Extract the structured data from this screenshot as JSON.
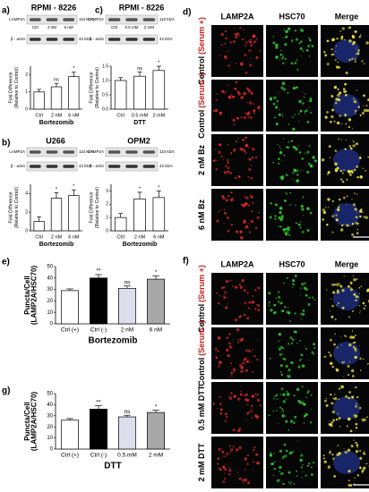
{
  "chart_data": [
    {
      "type": "bar",
      "panel": "a)",
      "title": "RPMI - 8226",
      "categories": [
        "Ctrl",
        "2 nM",
        "6 nM"
      ],
      "values": [
        1.0,
        1.3,
        1.9
      ],
      "errors": [
        0.15,
        0.2,
        0.25
      ],
      "significance": [
        null,
        "ns",
        "*"
      ],
      "colors": [
        "#ffffff",
        "#ffffff",
        "#ffffff"
      ],
      "ylim": [
        0,
        2.5
      ],
      "yticks": [
        0,
        1,
        2
      ],
      "ylabel": [
        "Fold Difference",
        "(Relative to Control)"
      ],
      "xlabel": "Bortezomib",
      "blot": {
        "rows": [
          "LAMP2A",
          "β - actin"
        ],
        "sizes": [
          "110 kDA",
          "42 kDA"
        ],
        "lane_labels": true
      }
    },
    {
      "type": "bar",
      "panel": "c)",
      "title": "RPMI - 8226",
      "categories": [
        "Ctrl",
        "0.5 mM",
        "2 mM"
      ],
      "values": [
        1.0,
        1.15,
        1.35
      ],
      "errors": [
        0.1,
        0.15,
        0.15
      ],
      "significance": [
        null,
        "ns",
        "*"
      ],
      "colors": [
        "#ffffff",
        "#ffffff",
        "#ffffff"
      ],
      "ylim": [
        0,
        1.5
      ],
      "yticks": [
        {
          "value": 0,
          "label": "0.0"
        },
        {
          "value": 0.5,
          "label": "0.5"
        },
        {
          "value": 1,
          "label": "1.0"
        },
        {
          "value": 1.5,
          "label": "1.5"
        }
      ],
      "ylabel": [
        "Fold Difference",
        "(Relative to Control)"
      ],
      "xlabel": "DTT",
      "blot": {
        "rows": [
          "LAMP2A",
          "β - actin"
        ],
        "sizes": [
          "110 kDA",
          "42 kDA"
        ],
        "lane_labels": true
      }
    },
    {
      "type": "bar",
      "panel": "b)",
      "title": "U266",
      "categories": [
        "Ctrl",
        "2 nM",
        "6 nM"
      ],
      "values": [
        1.0,
        3.5,
        3.8
      ],
      "errors": [
        0.5,
        0.6,
        0.6
      ],
      "significance": [
        null,
        "*",
        "*"
      ],
      "colors": [
        "#ffffff",
        "#ffffff",
        "#ffffff"
      ],
      "ylim": [
        0,
        5
      ],
      "yticks": [
        0,
        2,
        4
      ],
      "ylabel": [
        "Fold Difference",
        "(Relative to Control)"
      ],
      "xlabel": "Bortezomib",
      "blot": {
        "rows": [
          "LAMP2A",
          "β - actin"
        ],
        "sizes": [
          "110 kDA",
          "42 kDA"
        ],
        "lane_labels": false
      }
    },
    {
      "type": "bar",
      "title": "OPM2",
      "categories": [
        "Ctrl",
        "2 nM",
        "6 nM"
      ],
      "values": [
        1.0,
        2.4,
        2.5
      ],
      "errors": [
        0.3,
        0.5,
        0.5
      ],
      "significance": [
        null,
        "*",
        "*"
      ],
      "colors": [
        "#ffffff",
        "#ffffff",
        "#ffffff"
      ],
      "ylim": [
        0,
        3.5
      ],
      "yticks": [
        0,
        1,
        2,
        3
      ],
      "ylabel": [
        "Fold Difference",
        "(Relative to Control)"
      ],
      "xlabel": "Bortezomib",
      "blot": {
        "rows": [
          "LAMP2A",
          "β - actin"
        ],
        "sizes": [
          "110 kDA",
          "42 kDA"
        ],
        "lane_labels": false
      }
    },
    {
      "type": "bar",
      "panel": "e)",
      "categories": [
        "Ctrl (+)",
        "Ctrl (-)",
        "2 nM",
        "6 nM"
      ],
      "values": [
        29,
        40,
        31,
        39
      ],
      "errors": [
        1.5,
        3,
        2,
        3
      ],
      "significance": [
        null,
        "**",
        "ns",
        "*"
      ],
      "colors": [
        "#ffffff",
        "#000000",
        "#dde0ec",
        "#a8a8a8"
      ],
      "ylim": [
        0,
        50
      ],
      "yticks": [
        0,
        10,
        20,
        30,
        40,
        50
      ],
      "ylabel": [
        "Puncta/Cell",
        "(LAMP2A/HSC70)"
      ],
      "xlabel": "Bortezomib"
    },
    {
      "type": "bar",
      "panel": "g)",
      "categories": [
        "Ctrl (+)",
        "Ctrl (-)",
        "0.5 mM",
        "2 mM"
      ],
      "values": [
        26,
        36,
        29,
        33
      ],
      "errors": [
        1.5,
        3,
        1.5,
        2
      ],
      "significance": [
        null,
        "**",
        "ns",
        "*"
      ],
      "colors": [
        "#ffffff",
        "#000000",
        "#dde0ec",
        "#a8a8a8"
      ],
      "ylim": [
        0,
        50
      ],
      "yticks": [
        0,
        10,
        20,
        30,
        40,
        50
      ],
      "ylabel": [
        "Puncta/Cell",
        "(LAMP2A/HSC70)"
      ],
      "xlabel": "DTT"
    }
  ],
  "microscopy": [
    {
      "panel": "d)",
      "columns": [
        "LAMP2A",
        "HSC70",
        "Merge"
      ],
      "rows": [
        {
          "label": "Control",
          "sub": "(Serum +)"
        },
        {
          "label": "Control",
          "sub": "(Serum -)"
        },
        {
          "label": "2 nM Bz"
        },
        {
          "label": "6 nM Bz"
        }
      ]
    },
    {
      "panel": "f)",
      "columns": [
        "LAMP2A",
        "HSC70",
        "Merge"
      ],
      "rows": [
        {
          "label": "Control",
          "sub": "(Serum +)"
        },
        {
          "label": "Control",
          "sub": "(Serum -)"
        },
        {
          "label": "0.5 mM DTT"
        },
        {
          "label": "2 mM DTT"
        }
      ]
    }
  ]
}
